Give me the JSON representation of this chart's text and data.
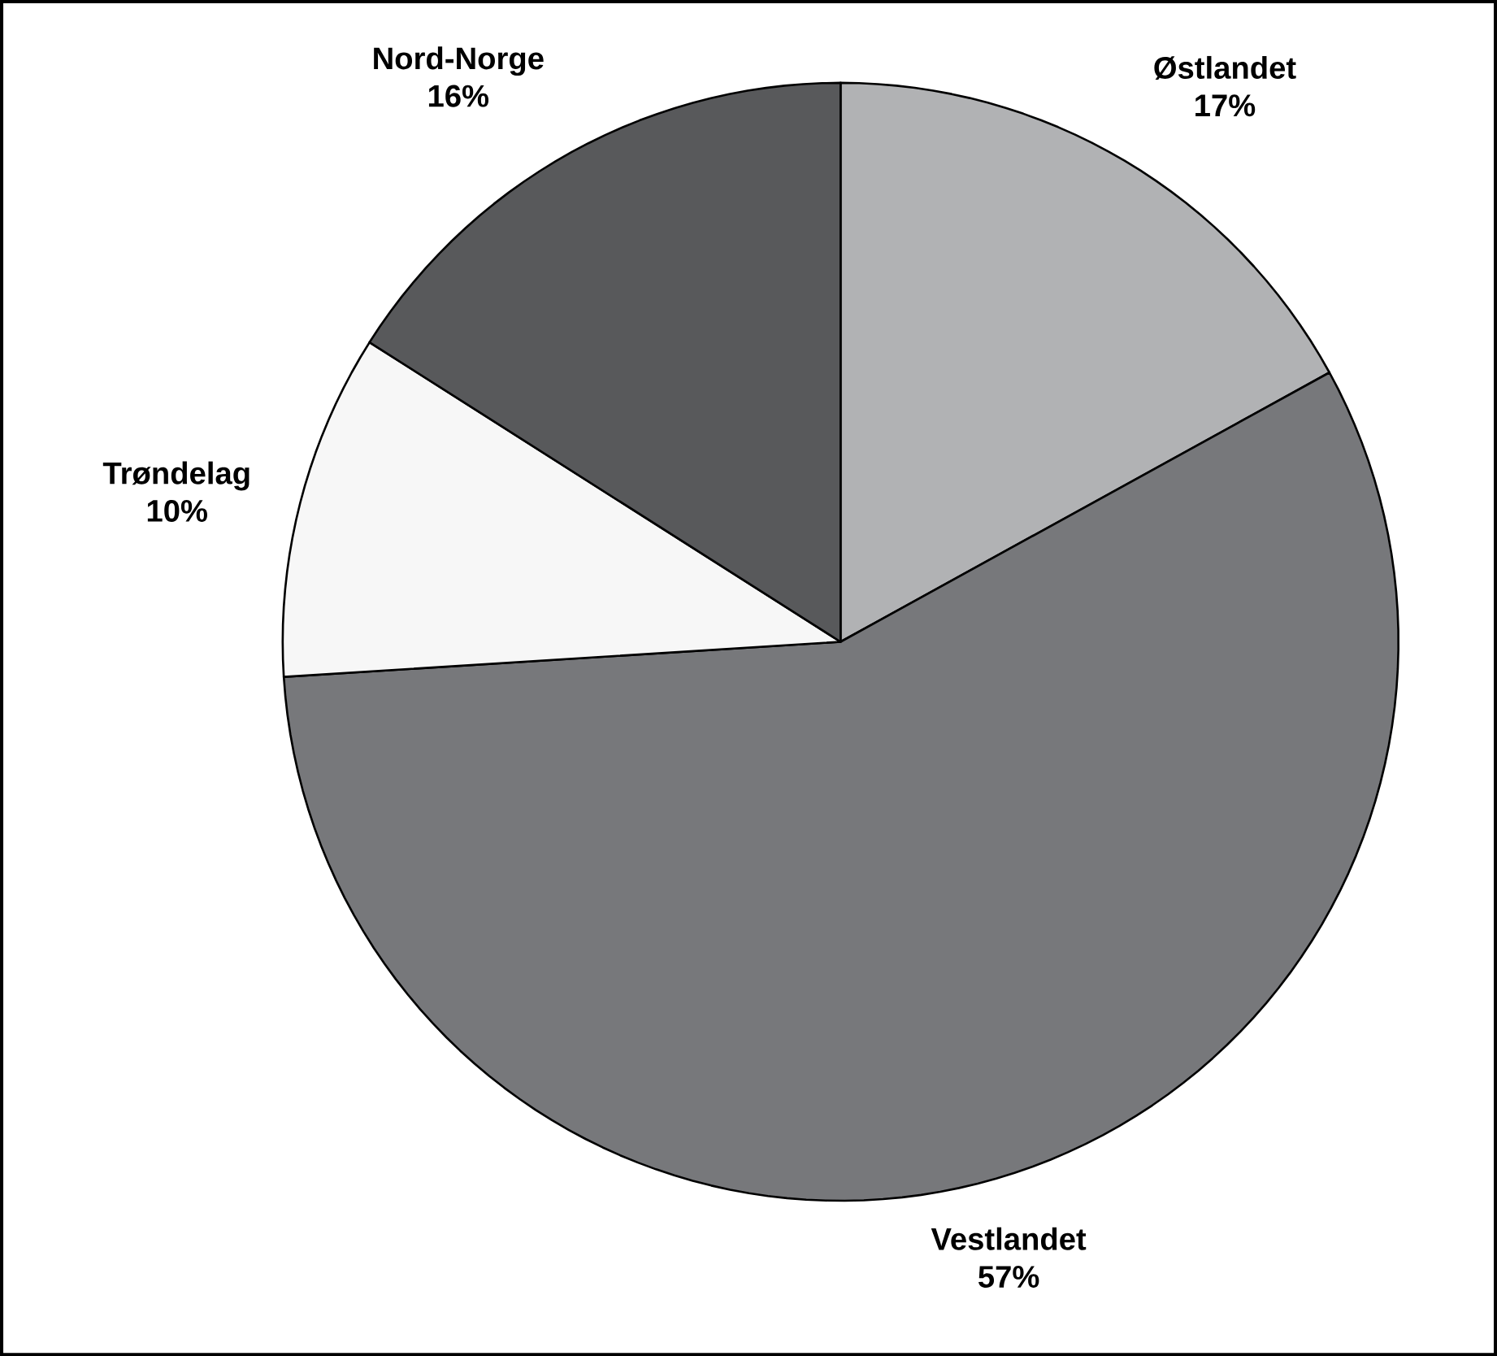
{
  "chart_data": {
    "type": "pie",
    "categories": [
      "Østlandet",
      "Vestlandet",
      "Trøndelag",
      "Nord-Norge"
    ],
    "values": [
      17,
      57,
      10,
      16
    ],
    "value_labels": [
      "17%",
      "57%",
      "10%",
      "16%"
    ],
    "colors": [
      "#b1b2b4",
      "#77787b",
      "#f7f7f7",
      "#58595b"
    ]
  }
}
